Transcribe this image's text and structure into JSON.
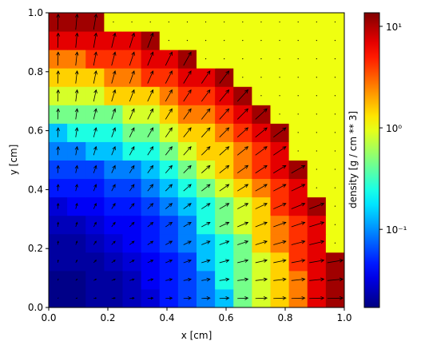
{
  "chart_data": {
    "type": "heatmap",
    "xlabel": "x [cm]",
    "ylabel": "y [cm]",
    "colorbar_label": "density [g / cm ** 3]",
    "xlim": [
      0,
      1
    ],
    "ylim": [
      0,
      1
    ],
    "xticks": [
      {
        "value": 0,
        "label": "0.0"
      },
      0.2,
      0.4,
      0.6,
      0.8,
      {
        "value": 1,
        "label": "1.0"
      }
    ],
    "yticks": [
      {
        "value": 0,
        "label": "0.0"
      },
      0.2,
      0.4,
      0.6,
      0.8,
      {
        "value": 1,
        "label": "1.0"
      }
    ],
    "colormap": "jet",
    "color_scale": "log",
    "clim": [
      0.017,
      13.6
    ],
    "cticks": [
      {
        "value": 0.1,
        "label": "10⁻¹"
      },
      {
        "value": 1,
        "label": "10⁰"
      },
      {
        "value": 10,
        "label": "10¹"
      }
    ],
    "values": [
      [
        0.018,
        0.018,
        0.021,
        0.021,
        0.025,
        0.03,
        0.046,
        0.06,
        0.09,
        0.14,
        0.45,
        0.85,
        1.5,
        2.6,
        7,
        11
      ],
      [
        0.018,
        0.018,
        0.021,
        0.021,
        0.025,
        0.037,
        0.046,
        0.06,
        0.09,
        0.25,
        0.45,
        0.85,
        1.5,
        2.6,
        7,
        11
      ],
      [
        0.021,
        0.021,
        0.021,
        0.025,
        0.03,
        0.037,
        0.046,
        0.06,
        0.14,
        0.25,
        0.45,
        0.85,
        1.5,
        4.3,
        7,
        11
      ],
      [
        0.021,
        0.021,
        0.025,
        0.03,
        0.037,
        0.046,
        0.06,
        0.09,
        0.14,
        0.25,
        0.45,
        1.5,
        2.6,
        4.3,
        7,
        1
      ],
      [
        0.025,
        0.025,
        0.03,
        0.037,
        0.037,
        0.046,
        0.06,
        0.09,
        0.25,
        0.45,
        0.85,
        1.5,
        2.6,
        4.3,
        7,
        1
      ],
      [
        0.03,
        0.037,
        0.037,
        0.046,
        0.046,
        0.06,
        0.09,
        0.14,
        0.25,
        0.45,
        0.85,
        1.5,
        4.3,
        7,
        11,
        1
      ],
      [
        0.046,
        0.046,
        0.046,
        0.06,
        0.06,
        0.09,
        0.14,
        0.25,
        0.45,
        0.85,
        1.5,
        2.6,
        4.3,
        7,
        1,
        1
      ],
      [
        0.06,
        0.06,
        0.06,
        0.09,
        0.09,
        0.14,
        0.25,
        0.45,
        0.85,
        1.5,
        2.6,
        4.3,
        7,
        11,
        1,
        1
      ],
      [
        0.09,
        0.09,
        0.14,
        0.14,
        0.25,
        0.25,
        0.45,
        0.85,
        1.5,
        1.5,
        2.6,
        4.3,
        7,
        1,
        1,
        1
      ],
      [
        0.14,
        0.25,
        0.25,
        0.25,
        0.45,
        0.45,
        0.85,
        1.5,
        1.5,
        2.6,
        4.3,
        7,
        11,
        1,
        1,
        1
      ],
      [
        0.45,
        0.45,
        0.45,
        0.45,
        0.85,
        0.85,
        1.5,
        2.6,
        2.6,
        4.3,
        7,
        11,
        1,
        1,
        1,
        1
      ],
      [
        0.85,
        0.85,
        0.85,
        1.5,
        1.5,
        1.5,
        2.6,
        4.3,
        4.3,
        7,
        11,
        1,
        1,
        1,
        1,
        1
      ],
      [
        1.5,
        1.5,
        1.5,
        2.6,
        2.6,
        4.3,
        4.3,
        7,
        7,
        11,
        1,
        1,
        1,
        1,
        1,
        1
      ],
      [
        2.6,
        2.6,
        4.3,
        4.3,
        4.3,
        7,
        7,
        11,
        1,
        1,
        1,
        1,
        1,
        1,
        1,
        1
      ],
      [
        7,
        7,
        7,
        7,
        7,
        11,
        1,
        1,
        1,
        1,
        1,
        1,
        1,
        1,
        1,
        1
      ],
      [
        11,
        11,
        11,
        1,
        1,
        1,
        1,
        1,
        1,
        1,
        1,
        1,
        1,
        1,
        1,
        1
      ]
    ],
    "u": [
      [
        0.03,
        0.09,
        0.16,
        0.22,
        0.28,
        0.34,
        0.41,
        0.47,
        0.53,
        0.59,
        0.66,
        0.72,
        0.78,
        0.84,
        0.91,
        0.97
      ],
      [
        0.03,
        0.09,
        0.16,
        0.22,
        0.28,
        0.34,
        0.41,
        0.47,
        0.53,
        0.59,
        0.66,
        0.72,
        0.78,
        0.84,
        0.91,
        0.97
      ],
      [
        0.03,
        0.09,
        0.16,
        0.22,
        0.28,
        0.34,
        0.41,
        0.47,
        0.53,
        0.59,
        0.66,
        0.72,
        0.78,
        0.84,
        0.91,
        0.97
      ],
      [
        0.03,
        0.09,
        0.16,
        0.22,
        0.28,
        0.34,
        0.41,
        0.47,
        0.53,
        0.59,
        0.66,
        0.72,
        0.78,
        0.84,
        0.91,
        0
      ],
      [
        0.03,
        0.09,
        0.16,
        0.22,
        0.28,
        0.34,
        0.41,
        0.47,
        0.53,
        0.59,
        0.66,
        0.72,
        0.78,
        0.84,
        0.91,
        0
      ],
      [
        0.03,
        0.09,
        0.16,
        0.22,
        0.28,
        0.34,
        0.41,
        0.47,
        0.53,
        0.59,
        0.66,
        0.72,
        0.78,
        0.84,
        0.91,
        0
      ],
      [
        0.03,
        0.09,
        0.16,
        0.22,
        0.28,
        0.34,
        0.41,
        0.47,
        0.53,
        0.59,
        0.66,
        0.72,
        0.78,
        0.84,
        0,
        0
      ],
      [
        0.03,
        0.09,
        0.16,
        0.22,
        0.28,
        0.34,
        0.41,
        0.47,
        0.53,
        0.59,
        0.66,
        0.72,
        0.78,
        0.84,
        0,
        0
      ],
      [
        0.03,
        0.09,
        0.16,
        0.22,
        0.28,
        0.34,
        0.41,
        0.47,
        0.53,
        0.59,
        0.66,
        0.72,
        0.78,
        0,
        0,
        0
      ],
      [
        0.03,
        0.09,
        0.16,
        0.22,
        0.28,
        0.34,
        0.41,
        0.47,
        0.53,
        0.59,
        0.66,
        0.72,
        0.78,
        0,
        0,
        0
      ],
      [
        0.03,
        0.09,
        0.16,
        0.22,
        0.28,
        0.34,
        0.41,
        0.47,
        0.53,
        0.59,
        0.66,
        0.72,
        0,
        0,
        0,
        0
      ],
      [
        0.03,
        0.09,
        0.16,
        0.22,
        0.28,
        0.34,
        0.41,
        0.47,
        0.53,
        0.59,
        0.66,
        0,
        0,
        0,
        0,
        0
      ],
      [
        0.03,
        0.09,
        0.16,
        0.22,
        0.28,
        0.34,
        0.41,
        0.47,
        0.53,
        0.59,
        0,
        0,
        0,
        0,
        0,
        0
      ],
      [
        0.03,
        0.09,
        0.16,
        0.22,
        0.28,
        0.34,
        0.41,
        0.47,
        0,
        0,
        0,
        0,
        0,
        0,
        0,
        0
      ],
      [
        0.03,
        0.09,
        0.16,
        0.22,
        0.28,
        0.34,
        0,
        0,
        0,
        0,
        0,
        0,
        0,
        0,
        0,
        0
      ],
      [
        0.03,
        0.09,
        0.16,
        0,
        0,
        0,
        0,
        0,
        0,
        0,
        0,
        0,
        0,
        0,
        0,
        0
      ]
    ],
    "v": [
      [
        0.03,
        0.03,
        0.03,
        0.03,
        0.03,
        0.03,
        0.03,
        0.03,
        0.03,
        0.03,
        0.03,
        0.03,
        0.03,
        0.03,
        0.03,
        0.03
      ],
      [
        0.09,
        0.09,
        0.09,
        0.09,
        0.09,
        0.09,
        0.09,
        0.09,
        0.09,
        0.09,
        0.09,
        0.09,
        0.09,
        0.09,
        0.09,
        0.09
      ],
      [
        0.16,
        0.16,
        0.16,
        0.16,
        0.16,
        0.16,
        0.16,
        0.16,
        0.16,
        0.16,
        0.16,
        0.16,
        0.16,
        0.16,
        0.16,
        0.16
      ],
      [
        0.22,
        0.22,
        0.22,
        0.22,
        0.22,
        0.22,
        0.22,
        0.22,
        0.22,
        0.22,
        0.22,
        0.22,
        0.22,
        0.22,
        0.22,
        0
      ],
      [
        0.28,
        0.28,
        0.28,
        0.28,
        0.28,
        0.28,
        0.28,
        0.28,
        0.28,
        0.28,
        0.28,
        0.28,
        0.28,
        0.28,
        0.28,
        0
      ],
      [
        0.34,
        0.34,
        0.34,
        0.34,
        0.34,
        0.34,
        0.34,
        0.34,
        0.34,
        0.34,
        0.34,
        0.34,
        0.34,
        0.34,
        0.34,
        0
      ],
      [
        0.41,
        0.41,
        0.41,
        0.41,
        0.41,
        0.41,
        0.41,
        0.41,
        0.41,
        0.41,
        0.41,
        0.41,
        0.41,
        0.41,
        0,
        0
      ],
      [
        0.47,
        0.47,
        0.47,
        0.47,
        0.47,
        0.47,
        0.47,
        0.47,
        0.47,
        0.47,
        0.47,
        0.47,
        0.47,
        0.47,
        0,
        0
      ],
      [
        0.53,
        0.53,
        0.53,
        0.53,
        0.53,
        0.53,
        0.53,
        0.53,
        0.53,
        0.53,
        0.53,
        0.53,
        0.53,
        0,
        0,
        0
      ],
      [
        0.59,
        0.59,
        0.59,
        0.59,
        0.59,
        0.59,
        0.59,
        0.59,
        0.59,
        0.59,
        0.59,
        0.59,
        0.59,
        0,
        0,
        0
      ],
      [
        0.66,
        0.66,
        0.66,
        0.66,
        0.66,
        0.66,
        0.66,
        0.66,
        0.66,
        0.66,
        0.66,
        0.66,
        0,
        0,
        0,
        0
      ],
      [
        0.72,
        0.72,
        0.72,
        0.72,
        0.72,
        0.72,
        0.72,
        0.72,
        0.72,
        0.72,
        0.72,
        0,
        0,
        0,
        0,
        0
      ],
      [
        0.78,
        0.78,
        0.78,
        0.78,
        0.78,
        0.78,
        0.78,
        0.78,
        0.78,
        0.78,
        0,
        0,
        0,
        0,
        0,
        0
      ],
      [
        0.84,
        0.84,
        0.84,
        0.84,
        0.84,
        0.84,
        0.84,
        0.84,
        0,
        0,
        0,
        0,
        0,
        0,
        0,
        0
      ],
      [
        0.91,
        0.91,
        0.91,
        0.91,
        0.91,
        0.91,
        0,
        0,
        0,
        0,
        0,
        0,
        0,
        0,
        0,
        0
      ],
      [
        0.97,
        0.97,
        0.97,
        0,
        0,
        0,
        0,
        0,
        0,
        0,
        0,
        0,
        0,
        0,
        0,
        0
      ]
    ]
  }
}
